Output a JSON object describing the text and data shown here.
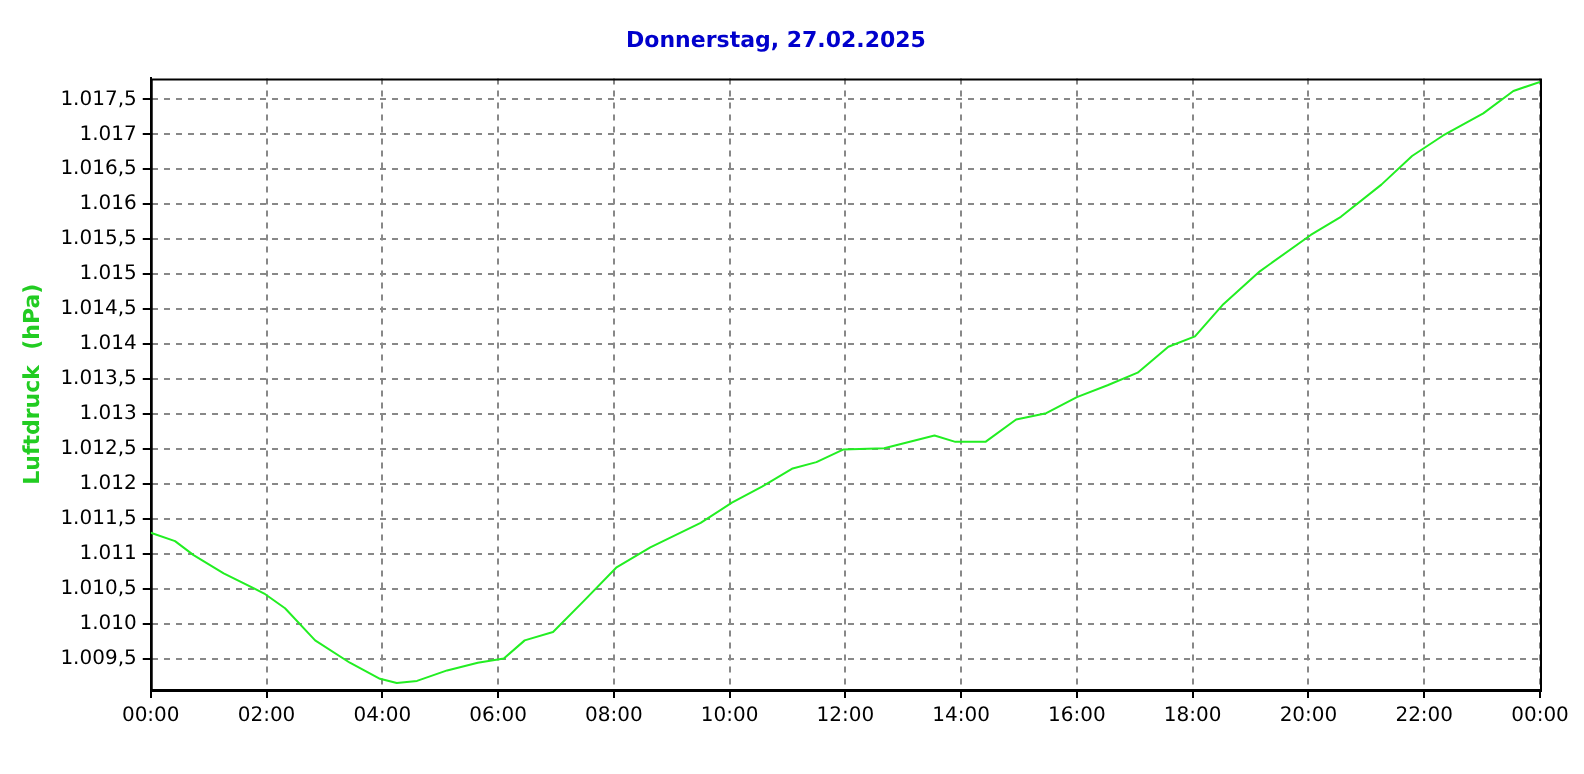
{
  "chart_data": {
    "type": "line",
    "title": "Donnerstag, 27.02.2025",
    "ylabel": "Luftdruck  (hPa)",
    "x": [
      0,
      0.42,
      0.74,
      1.26,
      1.96,
      2.32,
      2.84,
      3.44,
      3.96,
      4.25,
      4.6,
      5.12,
      5.65,
      6.1,
      6.46,
      6.95,
      7.5,
      8.04,
      8.63,
      9.5,
      10.04,
      10.56,
      11.09,
      11.5,
      11.96,
      12.67,
      13.54,
      13.9,
      14.42,
      14.95,
      15.47,
      16.0,
      16.53,
      17.05,
      17.58,
      18.04,
      18.53,
      19.16,
      20.04,
      20.56,
      21.26,
      21.79,
      22.32,
      23.02,
      23.54,
      24
    ],
    "series": [
      {
        "color": "#22ee22",
        "values": [
          1011.3,
          1011.18,
          1010.98,
          1010.72,
          1010.43,
          1010.22,
          1009.76,
          1009.44,
          1009.21,
          1009.15,
          1009.18,
          1009.33,
          1009.44,
          1009.5,
          1009.76,
          1009.88,
          1010.34,
          1010.8,
          1011.09,
          1011.44,
          1011.73,
          1011.96,
          1012.22,
          1012.31,
          1012.49,
          1012.51,
          1012.69,
          1012.6,
          1012.6,
          1012.92,
          1013.01,
          1013.24,
          1013.41,
          1013.59,
          1013.96,
          1014.11,
          1014.57,
          1015.04,
          1015.56,
          1015.82,
          1016.28,
          1016.69,
          1016.98,
          1017.3,
          1017.62,
          1017.75
        ]
      }
    ],
    "xlim": [
      0,
      24
    ],
    "xticks": [
      {
        "value": 0,
        "label": "00:00"
      },
      {
        "value": 2,
        "label": "02:00"
      },
      {
        "value": 4,
        "label": "04:00"
      },
      {
        "value": 6,
        "label": "06:00"
      },
      {
        "value": 8,
        "label": "08:00"
      },
      {
        "value": 10,
        "label": "10:00"
      },
      {
        "value": 12,
        "label": "12:00"
      },
      {
        "value": 14,
        "label": "14:00"
      },
      {
        "value": 16,
        "label": "16:00"
      },
      {
        "value": 18,
        "label": "18:00"
      },
      {
        "value": 20,
        "label": "20:00"
      },
      {
        "value": 22,
        "label": "22:00"
      },
      {
        "value": 24,
        "label": "00:00"
      }
    ],
    "ylim": [
      1009.05,
      1017.8
    ],
    "yticks": [
      {
        "value": 1009.5,
        "label": "1.009,5"
      },
      {
        "value": 1010,
        "label": "1.010"
      },
      {
        "value": 1010.5,
        "label": "1.010,5"
      },
      {
        "value": 1011,
        "label": "1.011"
      },
      {
        "value": 1011.5,
        "label": "1.011,5"
      },
      {
        "value": 1012,
        "label": "1.012"
      },
      {
        "value": 1012.5,
        "label": "1.012,5"
      },
      {
        "value": 1013,
        "label": "1.013"
      },
      {
        "value": 1013.5,
        "label": "1.013,5"
      },
      {
        "value": 1014,
        "label": "1.014"
      },
      {
        "value": 1014.5,
        "label": "1.014,5"
      },
      {
        "value": 1015,
        "label": "1.015"
      },
      {
        "value": 1015.5,
        "label": "1.015,5"
      },
      {
        "value": 1016,
        "label": "1.016"
      },
      {
        "value": 1016.5,
        "label": "1.016,5"
      },
      {
        "value": 1017,
        "label": "1.017"
      },
      {
        "value": 1017.5,
        "label": "1.017,5"
      }
    ],
    "grid": true,
    "legend": false,
    "marker": "none",
    "line_style": "solid"
  }
}
